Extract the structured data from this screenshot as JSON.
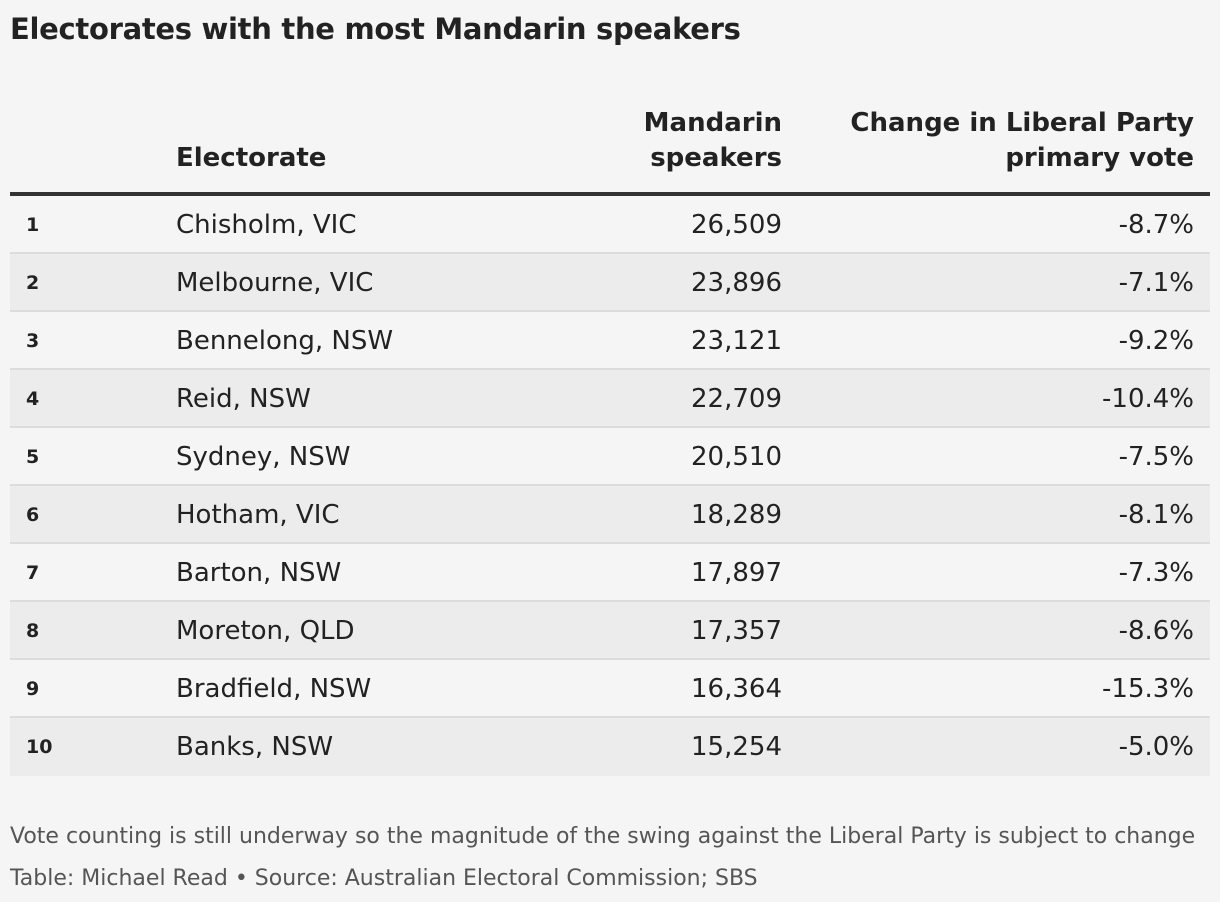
{
  "title": "Electorates with the most Mandarin speakers",
  "columns": {
    "rank": "",
    "electorate": "Electorate",
    "speakers_line1": "Mandarin",
    "speakers_line2": "speakers",
    "change_line1": "Change in Liberal Party",
    "change_line2": "primary vote"
  },
  "chart_data": {
    "type": "table",
    "title": "Electorates with the most Mandarin speakers",
    "columns": [
      "",
      "Electorate",
      "Mandarin speakers",
      "Change in Liberal Party primary vote"
    ],
    "rows": [
      {
        "rank": "1",
        "electorate": "Chisholm, VIC",
        "speakers": "26,509",
        "change": "-8.7%"
      },
      {
        "rank": "2",
        "electorate": "Melbourne, VIC",
        "speakers": "23,896",
        "change": "-7.1%"
      },
      {
        "rank": "3",
        "electorate": "Bennelong, NSW",
        "speakers": "23,121",
        "change": "-9.2%"
      },
      {
        "rank": "4",
        "electorate": "Reid, NSW",
        "speakers": "22,709",
        "change": "-10.4%"
      },
      {
        "rank": "5",
        "electorate": "Sydney, NSW",
        "speakers": "20,510",
        "change": "-7.5%"
      },
      {
        "rank": "6",
        "electorate": "Hotham, VIC",
        "speakers": "18,289",
        "change": "-8.1%"
      },
      {
        "rank": "7",
        "electorate": "Barton, NSW",
        "speakers": "17,897",
        "change": "-7.3%"
      },
      {
        "rank": "8",
        "electorate": "Moreton, QLD",
        "speakers": "17,357",
        "change": "-8.6%"
      },
      {
        "rank": "9",
        "electorate": "Bradfield, NSW",
        "speakers": "16,364",
        "change": "-15.3%"
      },
      {
        "rank": "10",
        "electorate": "Banks, NSW",
        "speakers": "15,254",
        "change": "-5.0%"
      }
    ]
  },
  "footer": {
    "note": "Vote counting is still underway so the magnitude of the swing against the Liberal Party is subject to change",
    "credit": "Table: Michael Read • Source: Australian Electoral Commission; SBS"
  },
  "colors": {
    "background": "#f5f5f5",
    "stripe": "#ececec",
    "text": "#222222",
    "muted": "#555555"
  }
}
